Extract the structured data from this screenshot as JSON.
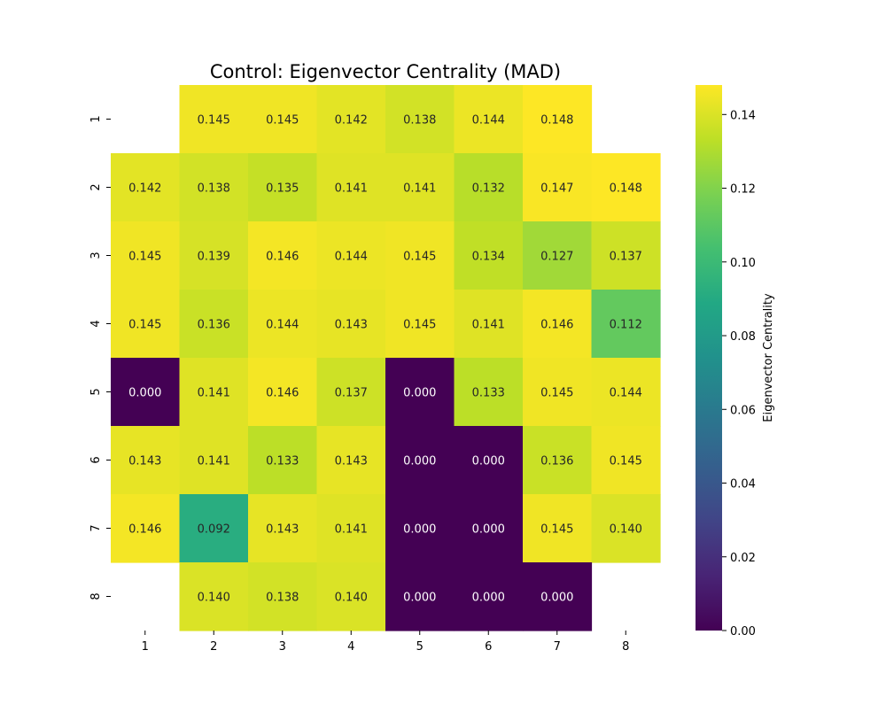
{
  "chart_data": {
    "type": "heatmap",
    "title": "Control: Eigenvector Centrality (MAD)",
    "xlabel": "",
    "ylabel": "",
    "x_categories": [
      "1",
      "2",
      "3",
      "4",
      "5",
      "6",
      "7",
      "8"
    ],
    "y_categories": [
      "1",
      "2",
      "3",
      "4",
      "5",
      "6",
      "7",
      "8"
    ],
    "values": [
      [
        null,
        0.145,
        0.145,
        0.142,
        0.138,
        0.144,
        0.148,
        null
      ],
      [
        0.142,
        0.138,
        0.135,
        0.141,
        0.141,
        0.132,
        0.147,
        0.148
      ],
      [
        0.145,
        0.139,
        0.146,
        0.144,
        0.145,
        0.134,
        0.127,
        0.137
      ],
      [
        0.145,
        0.136,
        0.144,
        0.143,
        0.145,
        0.141,
        0.146,
        0.112
      ],
      [
        0.0,
        0.141,
        0.146,
        0.137,
        0.0,
        0.133,
        0.145,
        0.144
      ],
      [
        0.143,
        0.141,
        0.133,
        0.143,
        0.0,
        0.0,
        0.136,
        0.145
      ],
      [
        0.146,
        0.092,
        0.143,
        0.141,
        0.0,
        0.0,
        0.145,
        0.14
      ],
      [
        null,
        0.14,
        0.138,
        0.14,
        0.0,
        0.0,
        0.0,
        null
      ]
    ],
    "value_format_decimals": 3,
    "colormap": "viridis",
    "color_range": [
      0.0,
      0.148
    ],
    "colorbar": {
      "label": "Eigenvector Centrality",
      "ticks": [
        "0.00",
        "0.02",
        "0.04",
        "0.06",
        "0.08",
        "0.10",
        "0.12",
        "0.14"
      ],
      "tick_values": [
        0.0,
        0.02,
        0.04,
        0.06,
        0.08,
        0.1,
        0.12,
        0.14
      ]
    },
    "grid": false
  }
}
